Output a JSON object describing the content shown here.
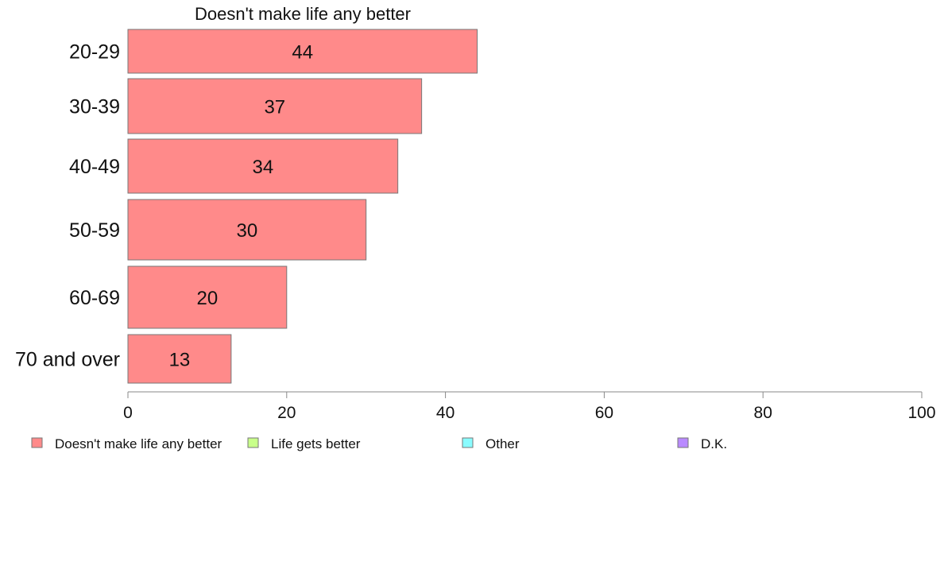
{
  "chart_data": {
    "type": "bar",
    "orientation": "horizontal",
    "title": "Doesn't make life any better",
    "categories": [
      "20-29",
      "30-39",
      "40-49",
      "50-59",
      "60-69",
      "70 and over"
    ],
    "series": [
      {
        "name": "Doesn't make life any better",
        "values": [
          44,
          37,
          34,
          30,
          20,
          13
        ],
        "color": "#ff8a8a"
      }
    ],
    "xlim": [
      0,
      100
    ],
    "xticks": [
      0,
      20,
      40,
      60,
      80,
      100
    ],
    "grid": false,
    "legend": {
      "placement": "bottom",
      "entries": [
        {
          "label": "Doesn't make life any better",
          "color": "#ff8a8a"
        },
        {
          "label": "Life gets better",
          "color": "#c8ff8a"
        },
        {
          "label": "Other",
          "color": "#8afcff"
        },
        {
          "label": "D.K.",
          "color": "#b98aff"
        }
      ]
    }
  }
}
